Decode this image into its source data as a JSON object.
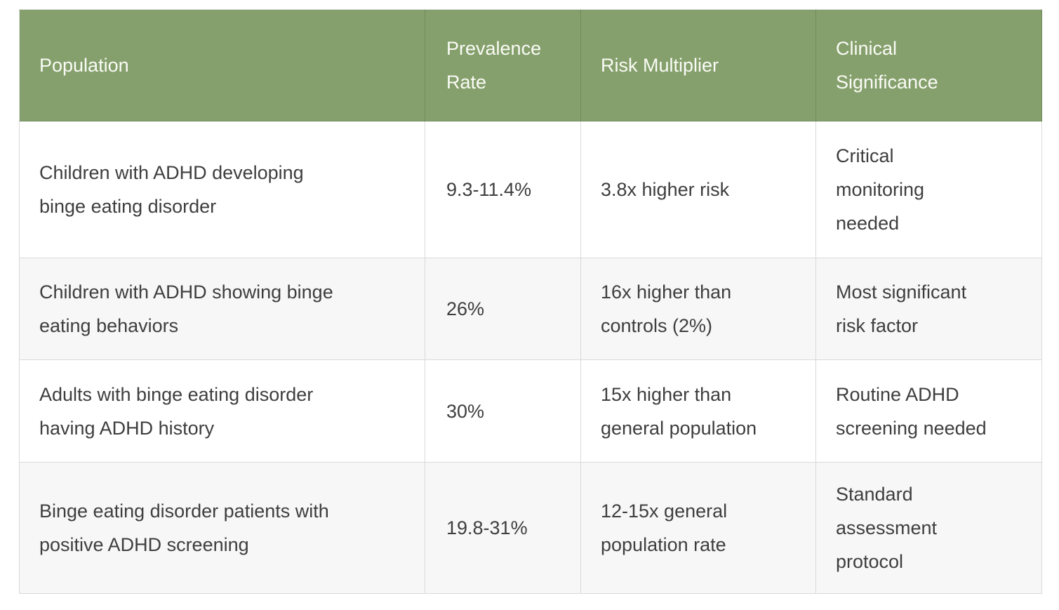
{
  "theme": {
    "page_bg": "#ffffff",
    "header_bg": "#85a06c",
    "header_text": "#fafbf6",
    "body_text": "#3e3e3e",
    "row_bg": "#ffffff",
    "row_alt_bg": "#f7f7f7",
    "border": "#d9d9d9"
  },
  "table": {
    "columns": [
      "Population",
      "Prevalence Rate",
      "Risk Multiplier",
      "Clinical Significance"
    ],
    "rows": [
      {
        "population": "Children with ADHD developing binge eating disorder",
        "prevalence_rate": "9.3-11.4%",
        "risk_multiplier": "3.8x higher risk",
        "clinical_significance": "Critical monitoring needed"
      },
      {
        "population": "Children with ADHD showing binge eating behaviors",
        "prevalence_rate": "26%",
        "risk_multiplier": "16x higher than controls (2%)",
        "clinical_significance": "Most significant risk factor"
      },
      {
        "population": "Adults with binge eating disorder having ADHD history",
        "prevalence_rate": "30%",
        "risk_multiplier": "15x higher than general population",
        "clinical_significance": "Routine ADHD screening needed"
      },
      {
        "population": "Binge eating disorder patients with positive ADHD screening",
        "prevalence_rate": "19.8-31%",
        "risk_multiplier": "12-15x general population rate",
        "clinical_significance": "Standard assessment protocol"
      }
    ]
  }
}
